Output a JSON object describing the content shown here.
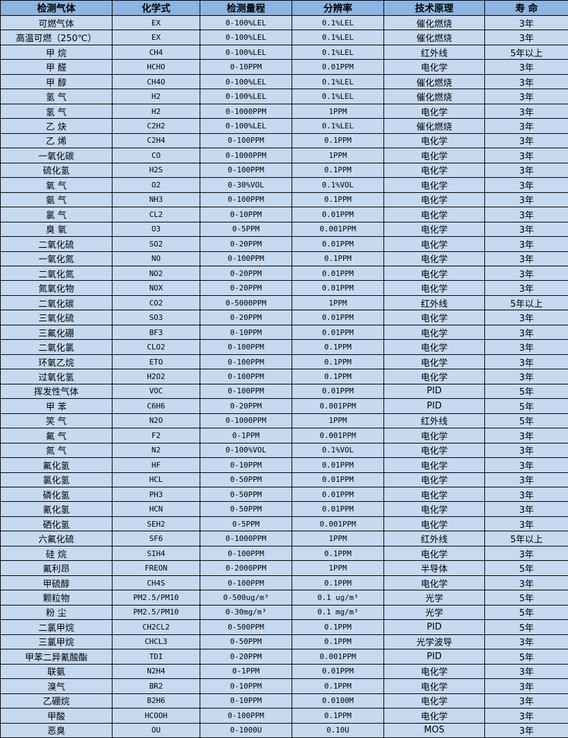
{
  "colors": {
    "header_bg": "#8DB4E2",
    "row_bg": "#C5D9F1",
    "border": "#000000"
  },
  "table": {
    "headers": [
      "检测气体",
      "化学式",
      "检测量程",
      "分辨率",
      "技术原理",
      "寿 命"
    ],
    "rows": [
      [
        "可燃气体",
        "EX",
        "0-100%LEL",
        "0.1%LEL",
        "催化燃烧",
        "3年"
      ],
      [
        "高温可燃（250℃）",
        "EX",
        "0-100%LEL",
        "0.1%LEL",
        "催化燃烧",
        "3年"
      ],
      [
        "甲 烷",
        "CH4",
        "0-100%LEL",
        "0.1%LEL",
        "红外线",
        "5年以上"
      ],
      [
        "甲 醛",
        "HCHO",
        "0-10PPM",
        "0.01PPM",
        "电化学",
        "3年"
      ],
      [
        "甲 醇",
        "CH4O",
        "0-100%LEL",
        "0.1%LEL",
        "催化燃烧",
        "3年"
      ],
      [
        "氢 气",
        "H2",
        "0-100%LEL",
        "0.1%LEL",
        "催化燃烧",
        "3年"
      ],
      [
        "氢 气",
        "H2",
        "0-1000PPM",
        "1PPM",
        "电化学",
        "3年"
      ],
      [
        "乙 炔",
        "C2H2",
        "0-100%LEL",
        "0.1%LEL",
        "催化燃烧",
        "3年"
      ],
      [
        "乙 烯",
        "C2H4",
        "0-100PPM",
        "0.1PPM",
        "电化学",
        "3年"
      ],
      [
        "一氧化碳",
        "CO",
        "0-1000PPM",
        "1PPM",
        "电化学",
        "3年"
      ],
      [
        "硫化氢",
        "H2S",
        "0-100PPM",
        "0.1PPM",
        "电化学",
        "3年"
      ],
      [
        "氧 气",
        "O2",
        "0-30%VOL",
        "0.1%VOL",
        "电化学",
        "3年"
      ],
      [
        "氨 气",
        "NH3",
        "0-100PPM",
        "0.1PPM",
        "电化学",
        "3年"
      ],
      [
        "氯 气",
        "CL2",
        "0-10PPM",
        "0.01PPM",
        "电化学",
        "3年"
      ],
      [
        "臭 氧",
        "O3",
        "0-5PPM",
        "0.001PPM",
        "电化学",
        "3年"
      ],
      [
        "二氧化硫",
        "SO2",
        "0-20PPM",
        "0.01PPM",
        "电化学",
        "3年"
      ],
      [
        "一氧化氮",
        "NO",
        "0-100PPM",
        "0.1PPM",
        "电化学",
        "3年"
      ],
      [
        "二氧化氮",
        "NO2",
        "0-20PPM",
        "0.01PPM",
        "电化学",
        "3年"
      ],
      [
        "氮氧化物",
        "NOX",
        "0-20PPM",
        "0.01PPM",
        "电化学",
        "3年"
      ],
      [
        "二氧化碳",
        "CO2",
        "0-5000PPM",
        "1PPM",
        "红外线",
        "5年以上"
      ],
      [
        "三氧化硫",
        "SO3",
        "0-20PPM",
        "0.01PPM",
        "电化学",
        "3年"
      ],
      [
        "三氟化硼",
        "BF3",
        "0-10PPM",
        "0.01PPM",
        "电化学",
        "3年"
      ],
      [
        "二氧化氯",
        "CLO2",
        "0-100PPM",
        "0.1PPM",
        "电化学",
        "3年"
      ],
      [
        "环氧乙烷",
        "ETO",
        "0-100PPM",
        "0.1PPM",
        "电化学",
        "3年"
      ],
      [
        "过氧化氢",
        "H2O2",
        "0-100PPM",
        "0.1PPM",
        "电化学",
        "3年"
      ],
      [
        "挥发性气体",
        "VOC",
        "0-100PPM",
        "0.01PPM",
        "PID",
        "5年"
      ],
      [
        "甲 苯",
        "C6H6",
        "0-20PPM",
        "0.001PPM",
        "PID",
        "5年"
      ],
      [
        "笑 气",
        "N2O",
        "0-1000PPM",
        "1PPM",
        "红外线",
        "5年"
      ],
      [
        "氟 气",
        "F2",
        "0-1PPM",
        "0.001PPM",
        "电化学",
        "3年"
      ],
      [
        "氮 气",
        "N2",
        "0-100%VOL",
        "0.1%VOL",
        "电化学",
        "3年"
      ],
      [
        "氟化氢",
        "HF",
        "0-10PPM",
        "0.01PPM",
        "电化学",
        "3年"
      ],
      [
        "氯化氢",
        "HCL",
        "0-50PPM",
        "0.01PPM",
        "电化学",
        "3年"
      ],
      [
        "磷化氢",
        "PH3",
        "0-50PPM",
        "0.01PPM",
        "电化学",
        "3年"
      ],
      [
        "氰化氢",
        "HCN",
        "0-50PPM",
        "0.01PPM",
        "电化学",
        "3年"
      ],
      [
        "硒化氢",
        "SEH2",
        "0-5PPM",
        "0.001PPM",
        "电化学",
        "3年"
      ],
      [
        "六氟化硫",
        "SF6",
        "0-1000PPM",
        "1PPM",
        "红外线",
        "5年以上"
      ],
      [
        "硅 烷",
        "SIH4",
        "0-100PPM",
        "0.1PPM",
        "电化学",
        "3年"
      ],
      [
        "氟利昂",
        "FREON",
        "0-2000PPM",
        "1PPM",
        "半导体",
        "5年"
      ],
      [
        "甲硫醇",
        "CH4S",
        "0-100PPM",
        "0.1PPM",
        "电化学",
        "3年"
      ],
      [
        "颗粒物",
        "PM2.5/PM10",
        "0-500ug/m³",
        "0.1 ug/m³",
        "光学",
        "5年"
      ],
      [
        "粉 尘",
        "PM2.5/PM10",
        "0-30mg/m³",
        "0.1 mg/m³",
        "光学",
        "5年"
      ],
      [
        "二氯甲烷",
        "CH2CL2",
        "0-500PPM",
        "0.1PPM",
        "PID",
        "5年"
      ],
      [
        "三氯甲烷",
        "CHCL3",
        "0-50PPM",
        "0.1PPM",
        "光学波导",
        "3年"
      ],
      [
        "甲苯二异氰酸酯",
        "TDI",
        "0-20PPM",
        "0.001PPM",
        "PID",
        "5年"
      ],
      [
        "联氨",
        "N2H4",
        "0-1PPM",
        "0.01PPM",
        "电化学",
        "3年"
      ],
      [
        "溴气",
        "BR2",
        "0-10PPM",
        "0.1PPM",
        "电化学",
        "3年"
      ],
      [
        "乙硼烷",
        "B2H6",
        "0-10PPM",
        "0.0100M",
        "电化学",
        "3年"
      ],
      [
        "甲酸",
        "HCOOH",
        "0-100PPM",
        "0.1PPM",
        "电化学",
        "3年"
      ],
      [
        "恶臭",
        "OU",
        "0-1000U",
        "0.10U",
        "MOS",
        "3年"
      ]
    ]
  }
}
